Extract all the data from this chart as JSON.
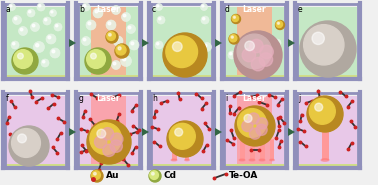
{
  "fig_width": 3.78,
  "fig_height": 1.85,
  "dpi": 100,
  "bg_color": "#f0f0f0",
  "tank_border_color": "#9090bb",
  "tank_fill_row1": "#c5e8c5",
  "tank_fill_row2": "#e8c8e8",
  "laser_color_row1": "#ffaa88",
  "laser_color_row2": "#ff9999",
  "floor_color": "#d0dd88",
  "arrow_color": "#336644",
  "panels_row1": [
    "a",
    "b",
    "c",
    "d",
    "e"
  ],
  "panels_row2": [
    "f",
    "g",
    "h",
    "i",
    "j"
  ],
  "legend_au_label": "Au",
  "legend_cd_label": "Cd",
  "legend_teoa_label": "Te-OA",
  "laser_label": "Laser",
  "au_color_inner": "#e8c840",
  "au_color_outer": "#b88820",
  "au_color_dark": "#a07010",
  "cd_color_inner": "#d8e880",
  "cd_color_outer": "#90a840",
  "sphere_e_inner": "#d8d0c8",
  "sphere_e_outer": "#b0a8a0",
  "nanowire_dark": "#333333",
  "nanowire_red": "#cc2222",
  "pillar_color": "#ff9999",
  "pillar_top": "#ffbbbb",
  "mixed_pink": "#e8a0b0"
}
